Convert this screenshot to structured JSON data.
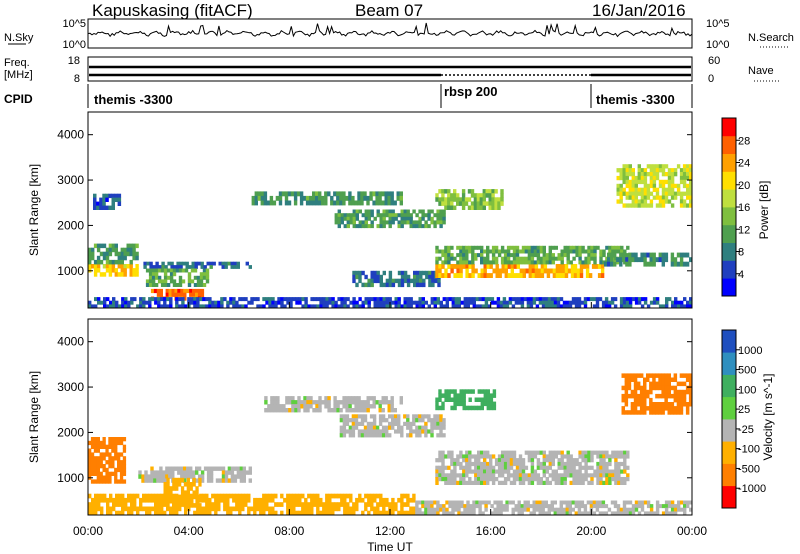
{
  "header": {
    "station": "Kapuskasing (fitACF)",
    "beam": "Beam 07",
    "date": "16/Jan/2016"
  },
  "noise_panel": {
    "left_label": "N.Sky",
    "right_label": "N.Search",
    "left_ticks": [
      "10^5",
      "10^0"
    ],
    "right_ticks": [
      "10^5",
      "10^0"
    ]
  },
  "freq_panel": {
    "left_label_top": "Freq.",
    "left_label_bottom": "[MHz]",
    "left_ticks": [
      "18",
      "8"
    ],
    "right_label": "Nave",
    "right_ticks": [
      "60",
      "0"
    ]
  },
  "cpid_panel": {
    "label": "CPID",
    "segments": [
      {
        "name": "themis -3300",
        "start_h": 0,
        "end_h": 14
      },
      {
        "name": "rbsp 200",
        "start_h": 14,
        "end_h": 20
      },
      {
        "name": "themis -3300",
        "start_h": 20,
        "end_h": 24
      }
    ]
  },
  "x_axis": {
    "label": "Time UT",
    "ticks": [
      "00:00",
      "04:00",
      "08:00",
      "12:00",
      "16:00",
      "20:00",
      "00:00"
    ],
    "range_h": [
      0,
      24
    ]
  },
  "chart_data": [
    {
      "type": "heatmap",
      "panel": "power",
      "ylabel": "Slant Range [km]",
      "yticks": [
        "1000",
        "2000",
        "3000",
        "4000"
      ],
      "ylim": [
        180,
        4500
      ],
      "colorbar_label": "Power [dB]",
      "colorbar_ticks": [
        "4",
        "8",
        "12",
        "16",
        "20",
        "24",
        "28"
      ],
      "colorbar_range": [
        0,
        32
      ],
      "colors": [
        "#0000ff",
        "#1f3fbf",
        "#2f7f7f",
        "#4f9f4f",
        "#7fbf3f",
        "#bfdf3f",
        "#ffdf00",
        "#ffa000",
        "#ff6000",
        "#ff0000"
      ],
      "features": [
        {
          "t": [
            0,
            2
          ],
          "r": [
            880,
            1150
          ],
          "p": 22
        },
        {
          "t": [
            0,
            2
          ],
          "r": [
            1150,
            1600
          ],
          "p": 10
        },
        {
          "t": [
            0.2,
            1.3
          ],
          "r": [
            2350,
            2700
          ],
          "p": 6
        },
        {
          "t": [
            2.2,
            6.5
          ],
          "r": [
            1050,
            1200
          ],
          "p": 7
        },
        {
          "t": [
            2.3,
            4.8
          ],
          "r": [
            650,
            1050
          ],
          "p": 12
        },
        {
          "t": [
            2.5,
            4.6
          ],
          "r": [
            350,
            600
          ],
          "p": 27
        },
        {
          "t": [
            6.5,
            12.5
          ],
          "r": [
            2450,
            2750
          ],
          "p": 10
        },
        {
          "t": [
            9.8,
            14.2
          ],
          "r": [
            1950,
            2350
          ],
          "p": 11
        },
        {
          "t": [
            10.5,
            14
          ],
          "r": [
            650,
            1000
          ],
          "p": 7
        },
        {
          "t": [
            13.8,
            20.5
          ],
          "r": [
            850,
            1150
          ],
          "p": 23
        },
        {
          "t": [
            13.8,
            21.5
          ],
          "r": [
            1150,
            1550
          ],
          "p": 12
        },
        {
          "t": [
            13.8,
            16.5
          ],
          "r": [
            2350,
            2800
          ],
          "p": 15
        },
        {
          "t": [
            20.5,
            24
          ],
          "r": [
            1100,
            1400
          ],
          "p": 9
        },
        {
          "t": [
            21,
            24
          ],
          "r": [
            2400,
            3350
          ],
          "p": 18
        },
        {
          "t": [
            0,
            24
          ],
          "r": [
            180,
            420
          ],
          "p": 5
        }
      ]
    },
    {
      "type": "heatmap",
      "panel": "velocity",
      "ylabel": "Slant Range [km]",
      "yticks": [
        "1000",
        "2000",
        "3000",
        "4000"
      ],
      "ylim": [
        180,
        4500
      ],
      "colorbar_label": "Velocity [m s^-1]",
      "colorbar_ticks": [
        "1000",
        "500",
        "100",
        "25",
        "-25",
        "-100",
        "-500",
        "-1000"
      ],
      "colors": [
        "#1f4fbf",
        "#2f8fbf",
        "#3faf5f",
        "#5fcf3f",
        "#b4b4b4",
        "#ffb000",
        "#ff7f00",
        "#ff0000"
      ],
      "features": [
        {
          "t": [
            0,
            1.5
          ],
          "r": [
            880,
            1900
          ],
          "v": -300
        },
        {
          "t": [
            2,
            6.5
          ],
          "r": [
            900,
            1250
          ],
          "v": 0
        },
        {
          "t": [
            3,
            4.5
          ],
          "r": [
            350,
            1000
          ],
          "v": -60
        },
        {
          "t": [
            7,
            12.5
          ],
          "r": [
            2450,
            2800
          ],
          "v": 0
        },
        {
          "t": [
            10,
            14.2
          ],
          "r": [
            1900,
            2400
          ],
          "v": 0
        },
        {
          "t": [
            13.8,
            21.5
          ],
          "r": [
            850,
            1600
          ],
          "v": 0
        },
        {
          "t": [
            13.8,
            16.2
          ],
          "r": [
            2500,
            2950
          ],
          "v": 150
        },
        {
          "t": [
            21.2,
            24
          ],
          "r": [
            2400,
            3300
          ],
          "v": -400
        },
        {
          "t": [
            0,
            13
          ],
          "r": [
            180,
            650
          ],
          "v": -60
        },
        {
          "t": [
            13,
            24
          ],
          "r": [
            180,
            500
          ],
          "v": 0
        }
      ]
    }
  ]
}
